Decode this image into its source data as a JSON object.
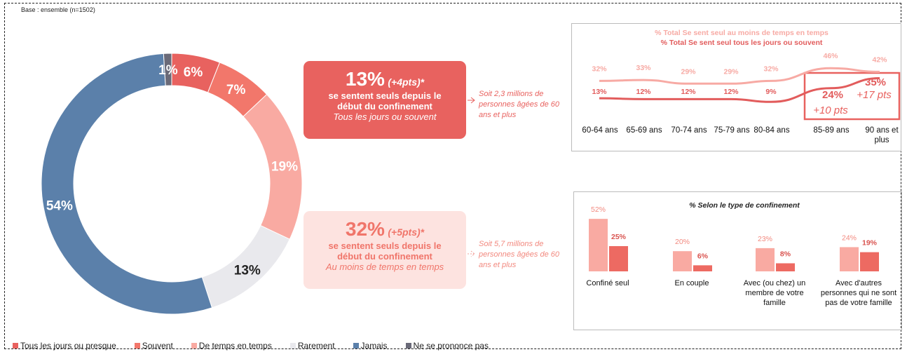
{
  "base": "Base : ensemble  (n=1502)",
  "callouts": [
    {
      "value": "13%",
      "delta": "(+4pts)*",
      "text": "se sentent seuls depuis le début du confinement",
      "subtext": "Tous les jours ou souvent",
      "side": "Soit 2,3 millions de personnes âgées de 60 ans et plus"
    },
    {
      "value": "32%",
      "delta": "(+5pts)*",
      "text": "se sentent seuls depuis le début du confinement",
      "subtext": "Au moins de temps en temps",
      "side": "Soit 5,7 millions de personnes âgées de 60 ans et plus"
    }
  ],
  "chart_data": [
    {
      "type": "pie",
      "donut": true,
      "categories": [
        "Tous les jours ou presque",
        "Souvent",
        "De temps en temps",
        "Rarement",
        "Jamais",
        "Ne se prononce pas"
      ],
      "values": [
        6,
        7,
        19,
        13,
        54,
        1
      ],
      "value_labels": [
        "6%",
        "7%",
        "19%",
        "13%",
        "54%",
        "1%"
      ],
      "colors": [
        "#e8625f",
        "#f2776b",
        "#f9aaa2",
        "#e9e9ed",
        "#5b80aa",
        "#6a6a78"
      ]
    },
    {
      "type": "line",
      "categories": [
        "60-64 ans",
        "65-69 ans",
        "70-74 ans",
        "75-79 ans",
        "80-84 ans",
        "85-89 ans",
        "90 ans et plus"
      ],
      "series": [
        {
          "name": "% Total Se sent seul au moins de temps en temps",
          "color": "#f7aaa4",
          "values": [
            32,
            33,
            29,
            29,
            32,
            46,
            42
          ],
          "value_labels": [
            "32%",
            "33%",
            "29%",
            "29%",
            "32%",
            "46%",
            "42%"
          ]
        },
        {
          "name": "% Total Se sent seul tous les jours ou souvent",
          "color": "#e25c5c",
          "values": [
            13,
            12,
            12,
            12,
            9,
            24,
            35
          ],
          "value_labels": [
            "13%",
            "12%",
            "12%",
            "12%",
            "9%",
            "24%",
            "35%"
          ]
        }
      ],
      "annotations": [
        "+10 pts",
        "+17 pts"
      ]
    },
    {
      "type": "bar",
      "title": "% Selon le type de confinement",
      "categories": [
        "Confiné seul",
        "En couple",
        "Avec (ou chez) un membre de votre famille",
        "Avec d'autres personnes qui ne sont pas de votre famille"
      ],
      "series": [
        {
          "color": "#f9aaa2",
          "values": [
            52,
            20,
            23,
            24
          ],
          "value_labels": [
            "52%",
            "20%",
            "23%",
            "24%"
          ]
        },
        {
          "color": "#ed6a62",
          "values": [
            25,
            6,
            8,
            19
          ],
          "value_labels": [
            "25%",
            "6%",
            "8%",
            "19%"
          ]
        }
      ]
    }
  ]
}
